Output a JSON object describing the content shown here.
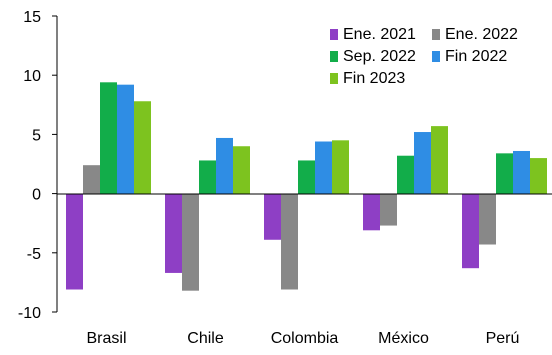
{
  "chart_data": {
    "type": "bar",
    "categories": [
      "Brasil",
      "Chile",
      "Colombia",
      "México",
      "Perú"
    ],
    "series": [
      {
        "name": "Ene. 2021",
        "color": "#8e3fc5",
        "values": [
          -8.1,
          -6.7,
          -3.9,
          -3.1,
          -6.3
        ]
      },
      {
        "name": "Ene. 2022",
        "color": "#888888",
        "values": [
          2.4,
          -8.2,
          -8.1,
          -2.7,
          -4.3
        ]
      },
      {
        "name": "Sep. 2022",
        "color": "#12ad4a",
        "values": [
          9.4,
          2.8,
          2.8,
          3.2,
          3.4
        ]
      },
      {
        "name": "Fin 2022",
        "color": "#2f8de4",
        "values": [
          9.2,
          4.7,
          4.4,
          5.2,
          3.6
        ]
      },
      {
        "name": "Fin 2023",
        "color": "#7dc31f",
        "values": [
          7.8,
          4.0,
          4.5,
          5.7,
          3.0
        ]
      }
    ],
    "ylim": [
      -10,
      15
    ],
    "yticks": [
      "15",
      "10",
      "5",
      "0",
      "-5",
      "-10"
    ],
    "ytick_values": [
      15,
      10,
      5,
      0,
      -5,
      -10
    ],
    "legend": {
      "placement": "top-right",
      "columns": 2
    },
    "grid": false
  }
}
